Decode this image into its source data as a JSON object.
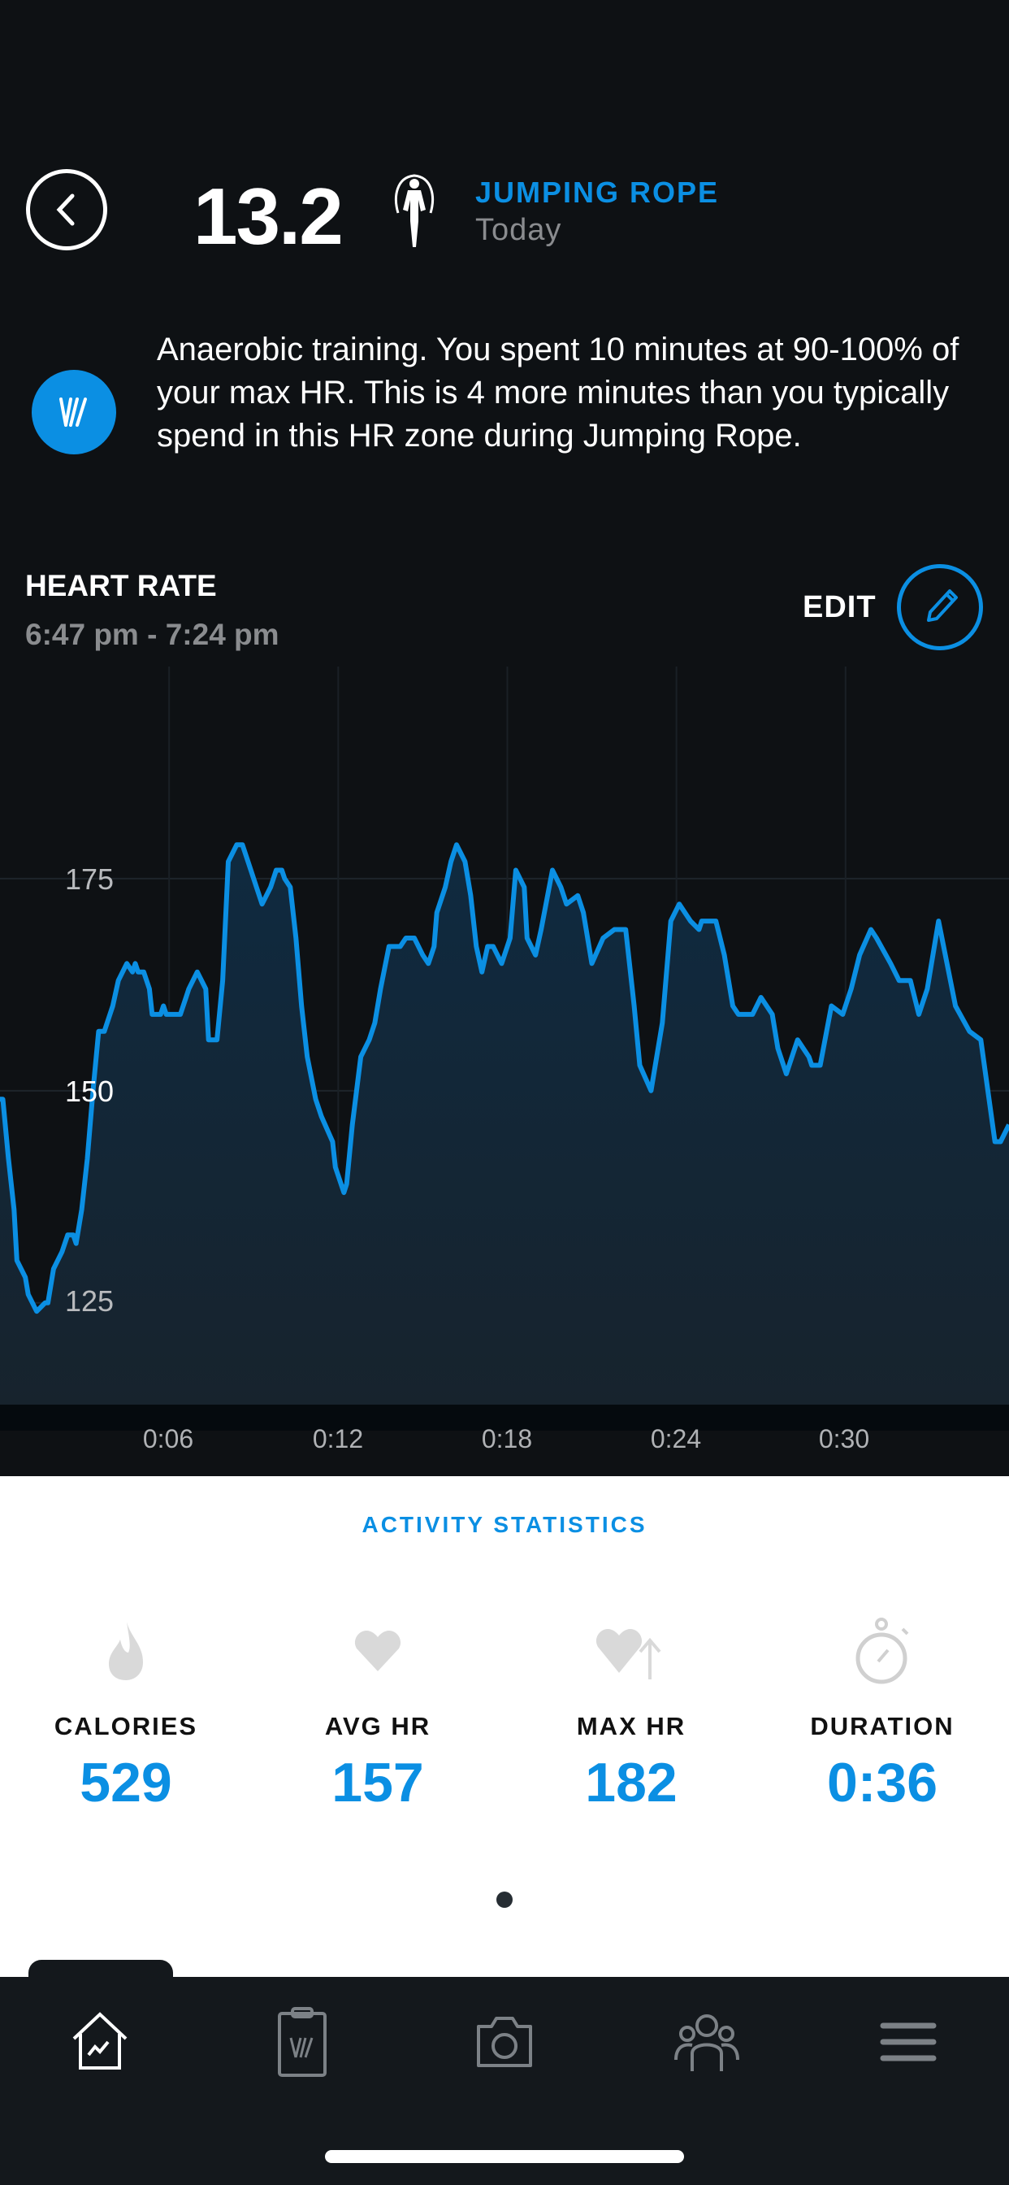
{
  "header": {
    "score": "13.2",
    "activity_name": "JUMPING ROPE",
    "activity_date": "Today",
    "activity_icon": "jump-rope-icon"
  },
  "insight": {
    "icon": "whoop-coach-icon",
    "text": "Anaerobic training. You spent 10 minutes at 90-100% of your max HR. This is 4 more minutes than you typically spend in this HR zone during Jumping Rope."
  },
  "heart_rate": {
    "title": "HEART RATE",
    "time_range": "6:47 pm - 7:24 pm",
    "edit_label": "EDIT"
  },
  "colors": {
    "accent": "#0b8fe3",
    "background": "#0e1114",
    "nav": "#14181c"
  },
  "chart_data": {
    "type": "area",
    "x_unit": "minutes elapsed",
    "y_unit": "bpm",
    "x_ticks": [
      6,
      12,
      18,
      24,
      30
    ],
    "x_tick_labels": [
      "0:06",
      "0:12",
      "0:18",
      "0:24",
      "0:30"
    ],
    "y_ticks": [
      125,
      150,
      175
    ],
    "y_tick_labels": [
      "125",
      "150",
      "175"
    ],
    "xlim": [
      0,
      35.8
    ],
    "ylim": [
      113,
      200
    ],
    "grid": true,
    "color": "#0b8fe3",
    "x": [
      0.1,
      0.3,
      0.5,
      0.6,
      0.9,
      1.0,
      1.3,
      1.6,
      1.7,
      1.9,
      2.2,
      2.4,
      2.6,
      2.7,
      2.9,
      3.1,
      3.3,
      3.5,
      3.7,
      4.0,
      4.2,
      4.5,
      4.7,
      4.8,
      4.9,
      5.1,
      5.3,
      5.4,
      5.7,
      5.8,
      5.9,
      6.4,
      6.6,
      6.7,
      7.0,
      7.3,
      7.4,
      7.7,
      7.9,
      8.1,
      8.4,
      8.6,
      8.9,
      9.1,
      9.3,
      9.6,
      9.8,
      10.0,
      10.1,
      10.3,
      10.5,
      10.7,
      10.9,
      11.2,
      11.4,
      11.8,
      11.9,
      12.2,
      12.3,
      12.5,
      12.8,
      13.1,
      13.3,
      13.5,
      13.8,
      14.2,
      14.4,
      14.7,
      15.0,
      15.2,
      15.4,
      15.5,
      15.8,
      16.0,
      16.2,
      16.5,
      16.7,
      16.9,
      17.1,
      17.3,
      17.5,
      17.8,
      18.1,
      18.3,
      18.6,
      18.7,
      19.0,
      19.2,
      19.6,
      19.9,
      20.1,
      20.5,
      20.7,
      21.0,
      21.4,
      21.8,
      22.2,
      22.5,
      22.7,
      23.1,
      23.5,
      23.8,
      24.1,
      24.5,
      24.8,
      24.9,
      25.4,
      25.7,
      26.0,
      26.2,
      26.7,
      27.0,
      27.4,
      27.6,
      27.9,
      28.3,
      28.7,
      28.8,
      29.1,
      29.5,
      29.9,
      30.2,
      30.5,
      30.9,
      31.1,
      31.6,
      31.9,
      32.3,
      32.6,
      32.9,
      33.3,
      33.6,
      33.9,
      34.4,
      34.8,
      35.3,
      35.5,
      35.8
    ],
    "y": [
      149,
      142,
      136,
      130,
      128,
      126,
      124,
      125,
      125,
      129,
      131,
      133,
      133,
      132,
      136,
      142,
      150,
      157,
      157,
      160,
      163,
      165,
      164,
      165,
      164,
      164,
      162,
      159,
      159,
      160,
      159,
      159,
      161,
      162,
      164,
      162,
      156,
      156,
      163,
      177,
      179,
      179,
      176,
      174,
      172,
      174,
      176,
      176,
      175,
      174,
      168,
      160,
      154,
      149,
      147,
      144,
      141,
      138,
      139,
      146,
      154,
      156,
      158,
      162,
      167,
      167,
      168,
      168,
      166,
      165,
      167,
      171,
      174,
      177,
      179,
      177,
      173,
      167,
      164,
      167,
      167,
      165,
      168,
      176,
      174,
      168,
      166,
      169,
      176,
      174,
      172,
      173,
      171,
      165,
      168,
      169,
      169,
      160,
      153,
      150,
      158,
      170,
      172,
      170,
      169,
      170,
      170,
      166,
      160,
      159,
      159,
      161,
      159,
      155,
      152,
      156,
      154,
      153,
      153,
      160,
      159,
      162,
      166,
      169,
      168,
      165,
      163,
      163,
      159,
      162,
      170,
      165,
      160,
      157,
      156,
      144,
      144,
      146
    ]
  },
  "stats": {
    "title": "ACTIVITY STATISTICS",
    "items": [
      {
        "label": "CALORIES",
        "value": "529",
        "icon": "flame-icon"
      },
      {
        "label": "AVG HR",
        "value": "157",
        "icon": "heart-icon"
      },
      {
        "label": "MAX HR",
        "value": "182",
        "icon": "heart-up-icon"
      },
      {
        "label": "DURATION",
        "value": "0:36",
        "icon": "stopwatch-icon"
      }
    ],
    "page_index": 1,
    "page_count": 1
  },
  "nav": {
    "items": [
      {
        "icon": "home-icon",
        "active": true
      },
      {
        "icon": "journal-icon",
        "active": false
      },
      {
        "icon": "camera-icon",
        "active": false
      },
      {
        "icon": "community-icon",
        "active": false
      },
      {
        "icon": "menu-icon",
        "active": false
      }
    ]
  }
}
